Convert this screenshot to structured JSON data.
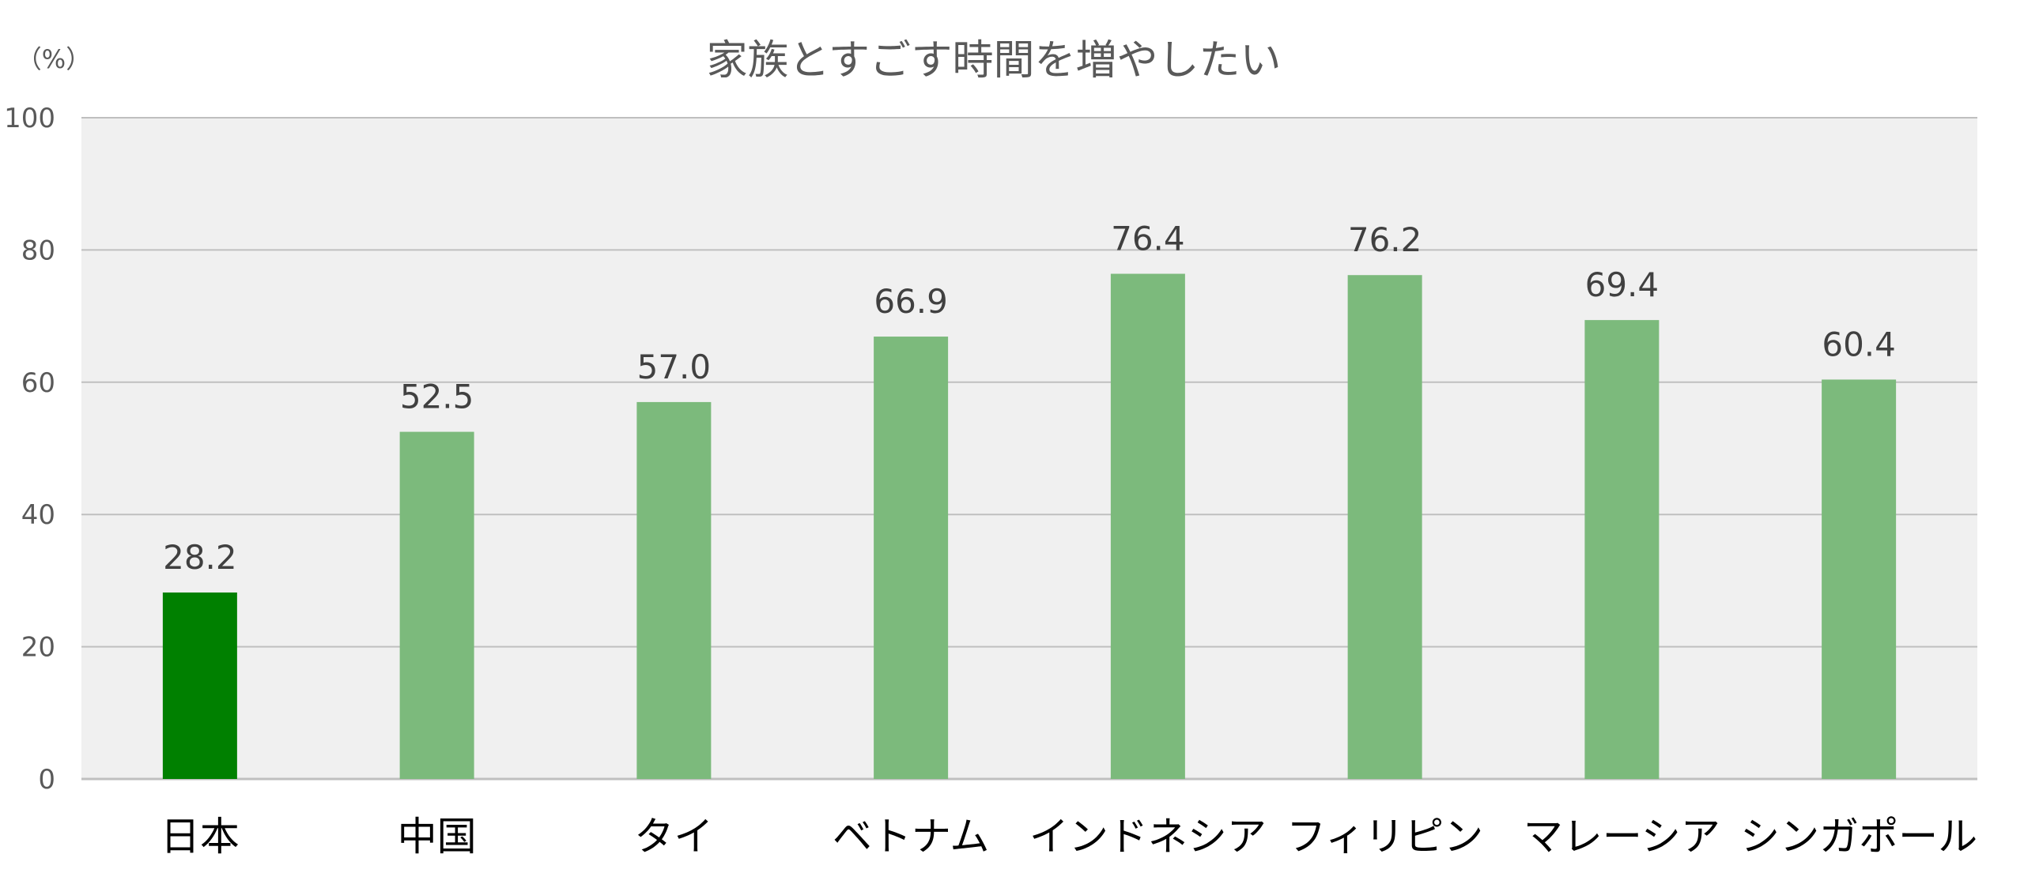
{
  "chart_data": {
    "type": "bar",
    "title": "家族とすごす時間を増やしたい",
    "ylabel": "（%）",
    "xlabel": "",
    "ylim": [
      0,
      100
    ],
    "yticks": [
      0,
      20,
      40,
      60,
      80,
      100
    ],
    "grid": true,
    "categories": [
      "日本",
      "中国",
      "タイ",
      "ベトナム",
      "インドネシア",
      "フィリピン",
      "マレーシア",
      "シンガポール"
    ],
    "values": [
      28.2,
      52.5,
      57.0,
      66.9,
      76.4,
      76.2,
      69.4,
      60.4
    ],
    "data_labels": [
      "28.2",
      "52.5",
      "57.0",
      "66.9",
      "76.4",
      "76.2",
      "69.4",
      "60.4"
    ],
    "colors": {
      "highlight": "#008000",
      "bar": "#7cba7c",
      "plot_background": "#f0f0f0",
      "gridline": "#bfbfbf"
    },
    "highlight_index": 0
  }
}
